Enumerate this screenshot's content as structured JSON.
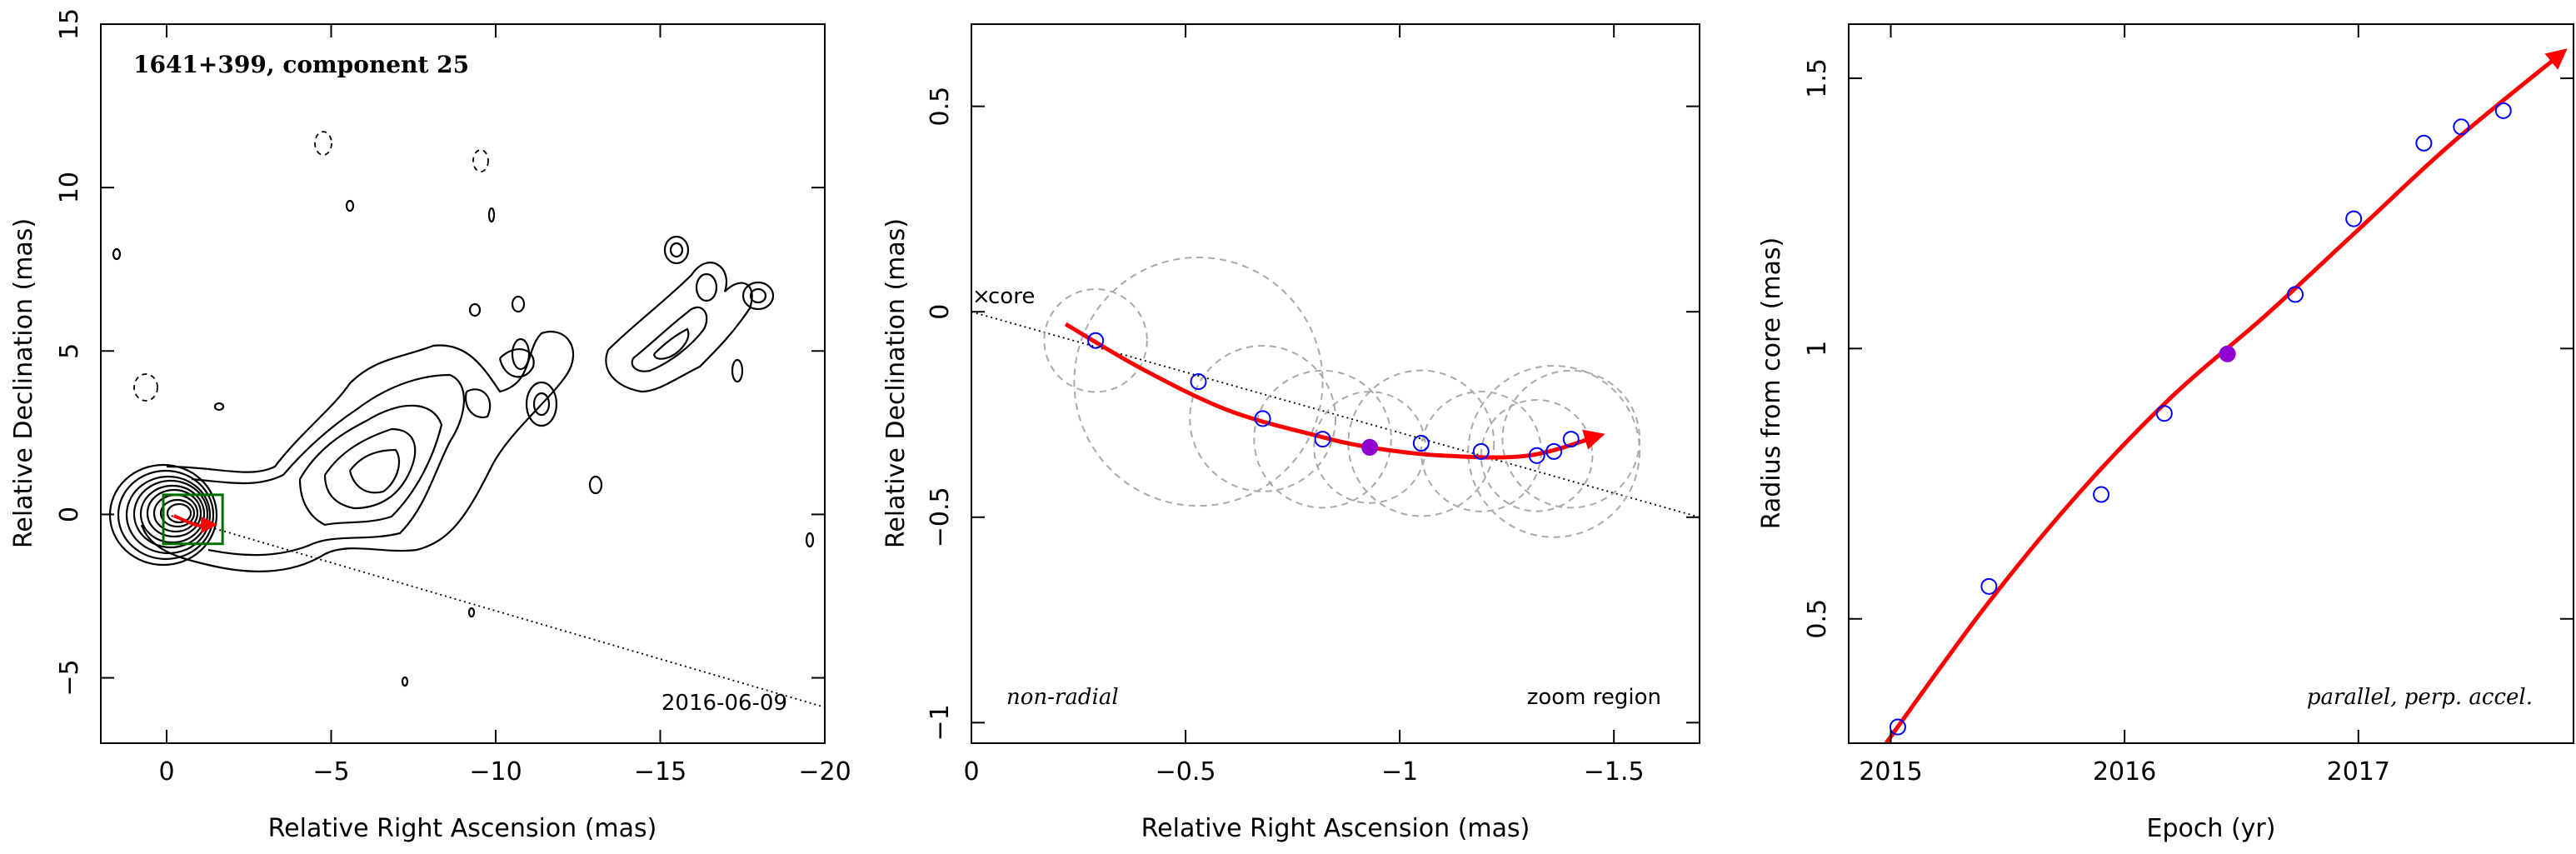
{
  "colors": {
    "fit": "#ff0000",
    "point": "#0000ff",
    "filled_point": "#9000d0",
    "box": "#007000",
    "ellipse": "#aaaaaa"
  },
  "chart_data": [
    {
      "type": "contour",
      "title": "1641+399, component 25",
      "date_label": "2016-06-09",
      "xlabel": "Relative Right Ascension (mas)",
      "ylabel": "Relative Declination (mas)",
      "xlim": [
        2,
        -20
      ],
      "ylim": [
        -7,
        15
      ],
      "xticks": [
        0,
        -5,
        -10,
        -15,
        -20
      ],
      "yticks": [
        -5,
        0,
        5,
        10,
        15
      ],
      "core_position": [
        0,
        0
      ],
      "zoom_box": {
        "x": [
          -1.7,
          0.1
        ],
        "y": [
          -0.9,
          0.6
        ]
      },
      "direction_line": {
        "x": [
          0,
          -20
        ],
        "y": [
          0,
          -5.9
        ]
      },
      "fit_track": {
        "x": [
          -0.22,
          -0.93,
          -1.45
        ],
        "y": [
          -0.04,
          -0.33,
          -0.31
        ]
      }
    },
    {
      "type": "scatter",
      "xlabel": "Relative Right Ascension (mas)",
      "ylabel": "Relative Declination (mas)",
      "xlim": [
        0,
        -1.7
      ],
      "ylim": [
        -1.05,
        0.7
      ],
      "xticks": [
        0,
        -0.5,
        -1,
        -1.5
      ],
      "yticks": [
        -1,
        -0.5,
        0,
        0.5
      ],
      "core_label": "core",
      "left_label": "non-radial",
      "right_label": "zoom region",
      "points": {
        "x": [
          -0.29,
          -0.53,
          -0.68,
          -0.82,
          -0.93,
          -1.05,
          -1.19,
          -1.32,
          -1.36,
          -1.4
        ],
        "y": [
          -0.07,
          -0.17,
          -0.26,
          -0.31,
          -0.33,
          -0.32,
          -0.34,
          -0.35,
          -0.34,
          -0.31
        ]
      },
      "ellipse_radii": [
        0.12,
        0.29,
        0.17,
        0.16,
        0.13,
        0.17,
        0.14,
        0.13,
        0.2,
        0.16
      ],
      "highlight_index": 4,
      "fit_curve": {
        "x": [
          -0.22,
          -0.4,
          -0.6,
          -0.8,
          -0.93,
          -1.1,
          -1.3,
          -1.47
        ],
        "y": [
          -0.03,
          -0.14,
          -0.24,
          -0.3,
          -0.33,
          -0.35,
          -0.35,
          -0.3
        ]
      },
      "direction_line": {
        "x": [
          0,
          -1.7
        ],
        "y": [
          0,
          -0.5
        ]
      }
    },
    {
      "type": "scatter",
      "xlabel": "Epoch (yr)",
      "ylabel": "Radius from core (mas)",
      "xlim": [
        2014.82,
        2017.92
      ],
      "ylim": [
        0.27,
        1.6
      ],
      "xticks": [
        2015,
        2016,
        2017
      ],
      "yticks": [
        0.5,
        1,
        1.5
      ],
      "annotation": "parallel, perp. accel.",
      "points": {
        "x": [
          2015.03,
          2015.42,
          2015.9,
          2016.17,
          2016.44,
          2016.73,
          2016.98,
          2017.28,
          2017.44,
          2017.62
        ],
        "y": [
          0.3,
          0.56,
          0.73,
          0.88,
          0.99,
          1.1,
          1.24,
          1.38,
          1.41,
          1.44
        ]
      },
      "highlight_index": 4,
      "fit_curve": {
        "x": [
          2014.98,
          2015.4,
          2015.8,
          2016.2,
          2016.6,
          2017.0,
          2017.4,
          2017.88
        ],
        "y": [
          0.27,
          0.52,
          0.73,
          0.91,
          1.06,
          1.22,
          1.38,
          1.55
        ]
      }
    }
  ]
}
